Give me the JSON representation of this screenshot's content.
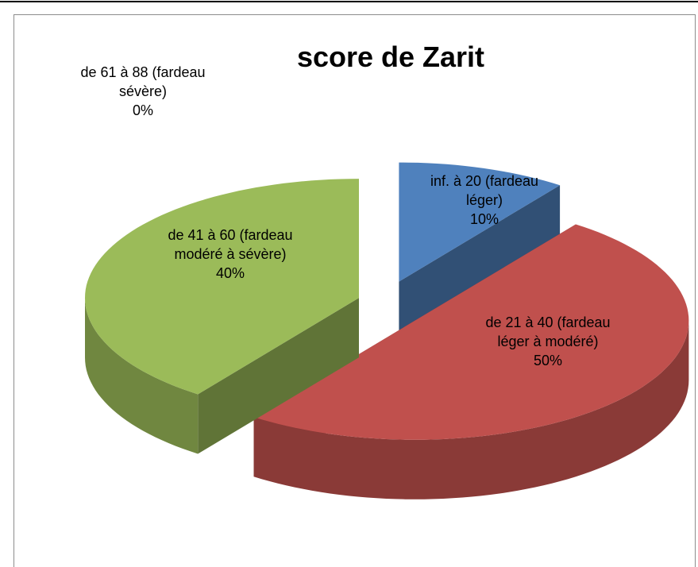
{
  "chart_data": {
    "type": "pie3d",
    "title": "score de Zarit",
    "categories": [
      "inf. à 20 (fardeau léger)",
      "de 21 à 40 (fardeau léger à modéré)",
      "de 41 à 60 (fardeau modéré à sévère)",
      "de 61 à 88 (fardeau sévère)"
    ],
    "values": [
      10,
      50,
      40,
      0
    ],
    "value_labels": [
      "10%",
      "50%",
      "40%",
      "0%"
    ],
    "colors": [
      "#4f81bd",
      "#c0504d",
      "#9bbb59",
      "#8064a2"
    ]
  }
}
